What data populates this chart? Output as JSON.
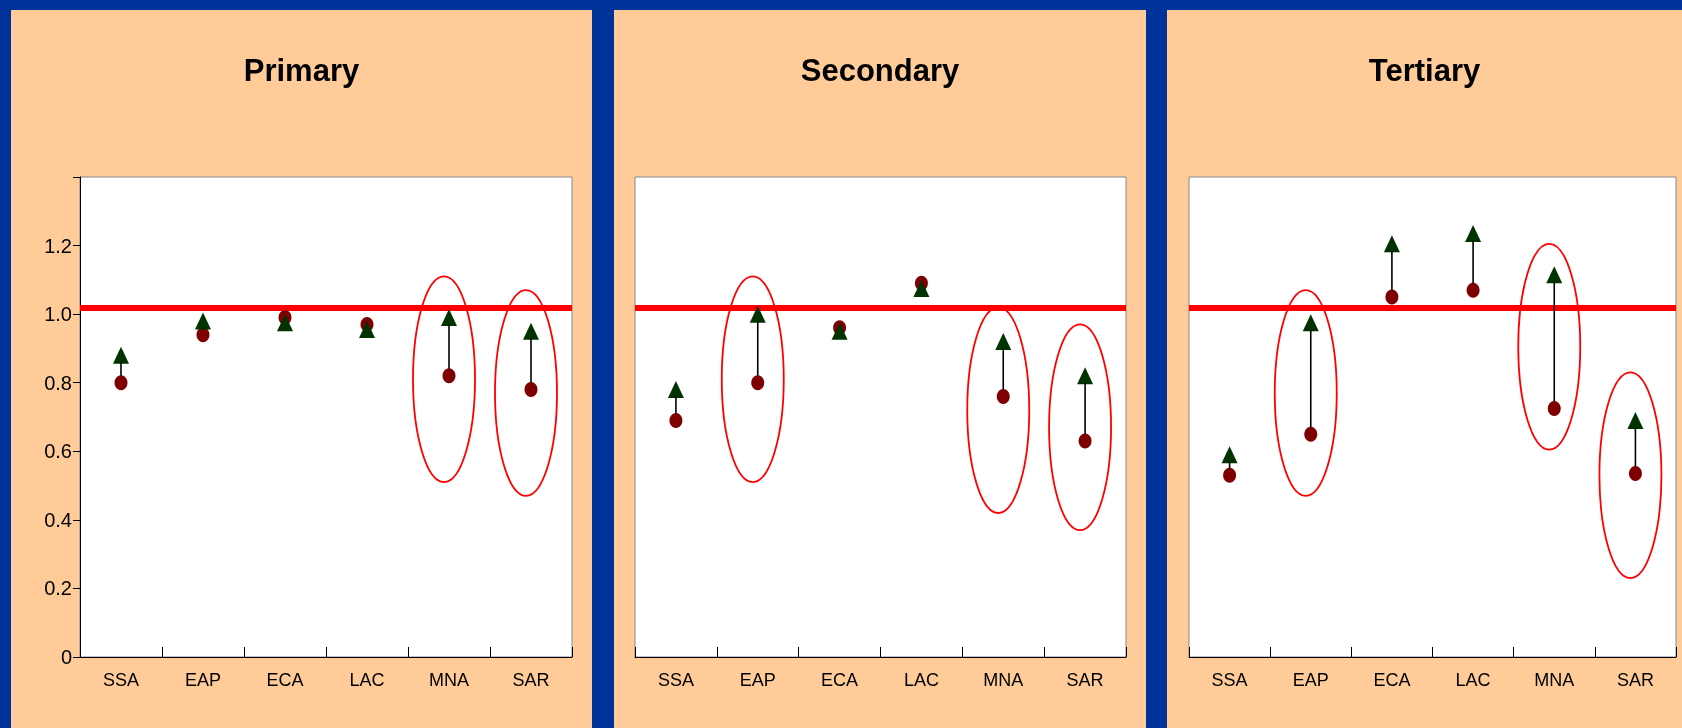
{
  "chart_data": [
    {
      "type": "scatter",
      "title": "Primary",
      "categories": [
        "SSA",
        "EAP",
        "ECA",
        "LAC",
        "MNA",
        "SAR"
      ],
      "series": [
        {
          "color": "#7f0000",
          "marker": "circle",
          "values": [
            0.8,
            0.94,
            0.99,
            0.97,
            0.82,
            0.78
          ]
        },
        {
          "color": "#003300",
          "marker": "triangle",
          "values": [
            0.88,
            0.98,
            0.975,
            0.955,
            0.99,
            0.95
          ]
        }
      ],
      "ylim": [
        0,
        1.4
      ],
      "yticks": [
        0,
        {
          "value": 0.2,
          "label": "0.2"
        },
        {
          "value": 0.4,
          "label": "0.4"
        },
        {
          "value": 0.6,
          "label": "0.6"
        },
        {
          "value": 0.8,
          "label": "0.8"
        },
        {
          "value": 1,
          "label": "1.0"
        },
        {
          "value": 1.2,
          "label": "1.2"
        },
        {
          "value": 1.4,
          "label": null
        }
      ],
      "ref_lines": [
        {
          "axis": "y",
          "value": 1.02,
          "color": "#ff0000"
        }
      ],
      "grid": false
    },
    {
      "type": "scatter",
      "title": "Secondary",
      "categories": [
        "SSA",
        "EAP",
        "ECA",
        "LAC",
        "MNA",
        "SAR"
      ],
      "series": [
        {
          "color": "#7f0000",
          "marker": "circle",
          "values": [
            0.69,
            0.8,
            0.96,
            1.09,
            0.76,
            0.63
          ]
        },
        {
          "color": "#003300",
          "marker": "triangle",
          "values": [
            0.78,
            1.0,
            0.95,
            1.075,
            0.92,
            0.82
          ]
        }
      ],
      "ylim": [
        0,
        1.4
      ],
      "tick_labels": "x",
      "ref_lines": [
        {
          "axis": "y",
          "value": 1.02,
          "color": "#ff0000"
        }
      ],
      "grid": false
    },
    {
      "type": "scatter",
      "title": "Tertiary",
      "categories": [
        "SSA",
        "EAP",
        "ECA",
        "LAC",
        "MNA",
        "SAR"
      ],
      "series": [
        {
          "color": "#7f0000",
          "marker": "circle",
          "values": [
            0.53,
            0.65,
            1.05,
            1.07,
            0.725,
            0.535
          ]
        },
        {
          "color": "#003300",
          "marker": "triangle",
          "values": [
            0.59,
            0.975,
            1.205,
            1.235,
            1.115,
            0.69
          ]
        }
      ],
      "ylim": [
        0,
        1.4
      ],
      "tick_labels": "x",
      "ref_lines": [
        {
          "axis": "y",
          "value": 1.02,
          "color": "#ff0000"
        }
      ],
      "grid": false
    }
  ]
}
